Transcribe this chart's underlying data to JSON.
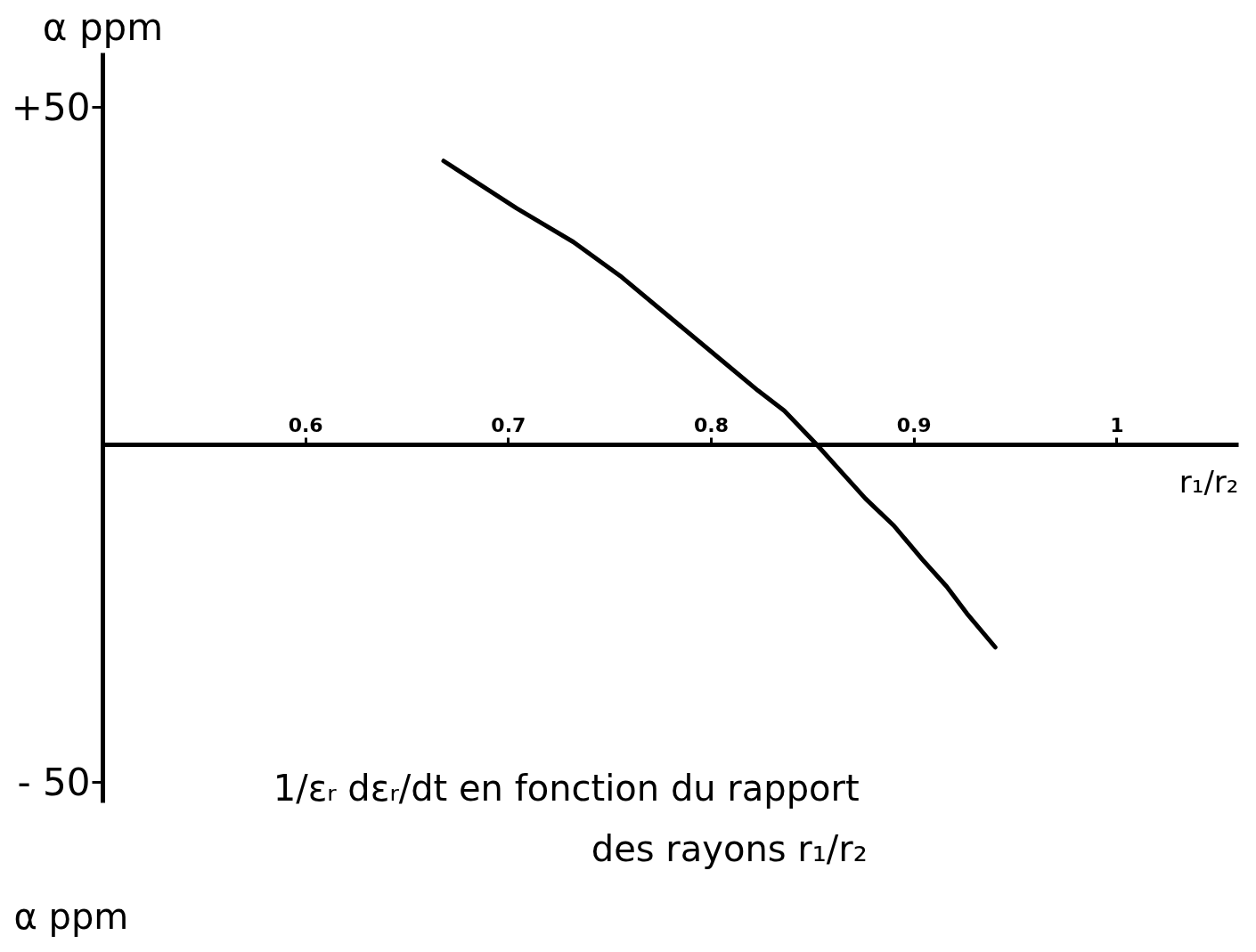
{
  "chart_data": {
    "type": "line",
    "xlabel": "r₁/r₂",
    "ylabel": "α ppm",
    "annotations": [
      "1/εᵣ dεᵣ/dt en fonction du rapport",
      "des rayons r₁/r₂",
      "α ppm"
    ],
    "x": [
      0.668,
      0.704,
      0.732,
      0.755,
      0.783,
      0.807,
      0.823,
      0.836,
      0.852,
      0.864,
      0.876,
      0.89,
      0.904,
      0.916,
      0.926,
      0.94
    ],
    "series": [
      {
        "color": "#000000",
        "values": [
          42,
          35,
          30,
          25,
          18,
          12,
          8,
          5,
          0,
          -4,
          -8,
          -12,
          -17,
          -21,
          -25,
          -30
        ]
      }
    ],
    "xlim": [
      0.5,
      1.06
    ],
    "ylim": [
      -53,
      58
    ],
    "xticks": [
      0.6,
      0.7,
      0.8,
      0.9,
      1
    ],
    "yticks": [
      {
        "value": 50,
        "label": "+50"
      },
      {
        "value": -50,
        "label": "- 50"
      }
    ]
  }
}
